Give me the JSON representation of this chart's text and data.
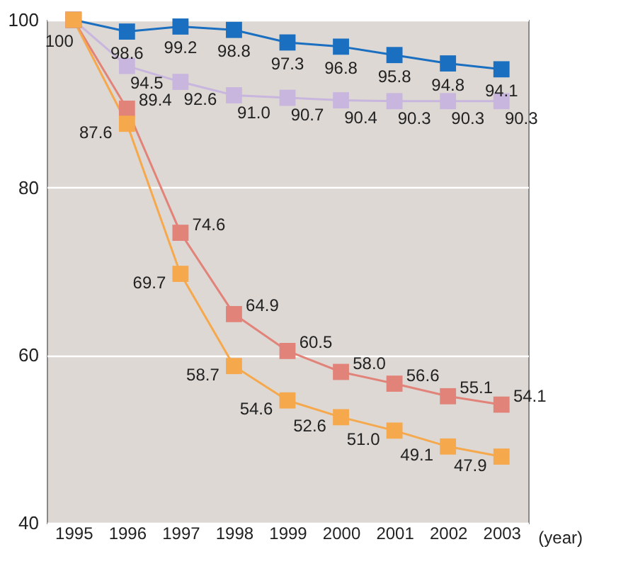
{
  "chart_data": {
    "type": "line",
    "xlabel": "(year)",
    "categories": [
      "1995",
      "1996",
      "1997",
      "1998",
      "1999",
      "2000",
      "2001",
      "2002",
      "2003"
    ],
    "series": [
      {
        "color": "#1a6fc0",
        "values": [
          100,
          98.6,
          99.2,
          98.8,
          97.3,
          96.8,
          95.8,
          94.8,
          94.1
        ],
        "value_labels": [
          "100",
          "98.6",
          "99.2",
          "98.8",
          "97.3",
          "96.8",
          "95.8",
          "94.8",
          "94.1"
        ]
      },
      {
        "color": "#c9b6de",
        "values": [
          100,
          94.5,
          92.6,
          91.0,
          90.7,
          90.4,
          90.3,
          90.3,
          90.3
        ],
        "value_labels": [
          null,
          "94.5",
          "92.6",
          "91.0",
          "90.7",
          "90.4",
          "90.3",
          "90.3",
          "90.3"
        ]
      },
      {
        "color": "#e2837a",
        "values": [
          100,
          89.4,
          74.6,
          64.9,
          60.5,
          58.0,
          56.6,
          55.1,
          54.1
        ],
        "value_labels": [
          null,
          "89.4",
          "74.6",
          "64.9",
          "60.5",
          "58.0",
          "56.6",
          "55.1",
          "54.1"
        ]
      },
      {
        "color": "#f6a84c",
        "values": [
          100,
          87.6,
          69.7,
          58.7,
          54.6,
          52.6,
          51.0,
          49.1,
          47.9
        ],
        "value_labels": [
          null,
          "87.6",
          "69.7",
          "58.7",
          "54.6",
          "52.6",
          "51.0",
          "49.1",
          "47.9"
        ]
      }
    ],
    "ylim": [
      40,
      100
    ],
    "yticks": [
      40,
      60,
      80,
      100
    ],
    "grid": "y",
    "marker": "square",
    "line_style": "solid",
    "legend": false
  }
}
